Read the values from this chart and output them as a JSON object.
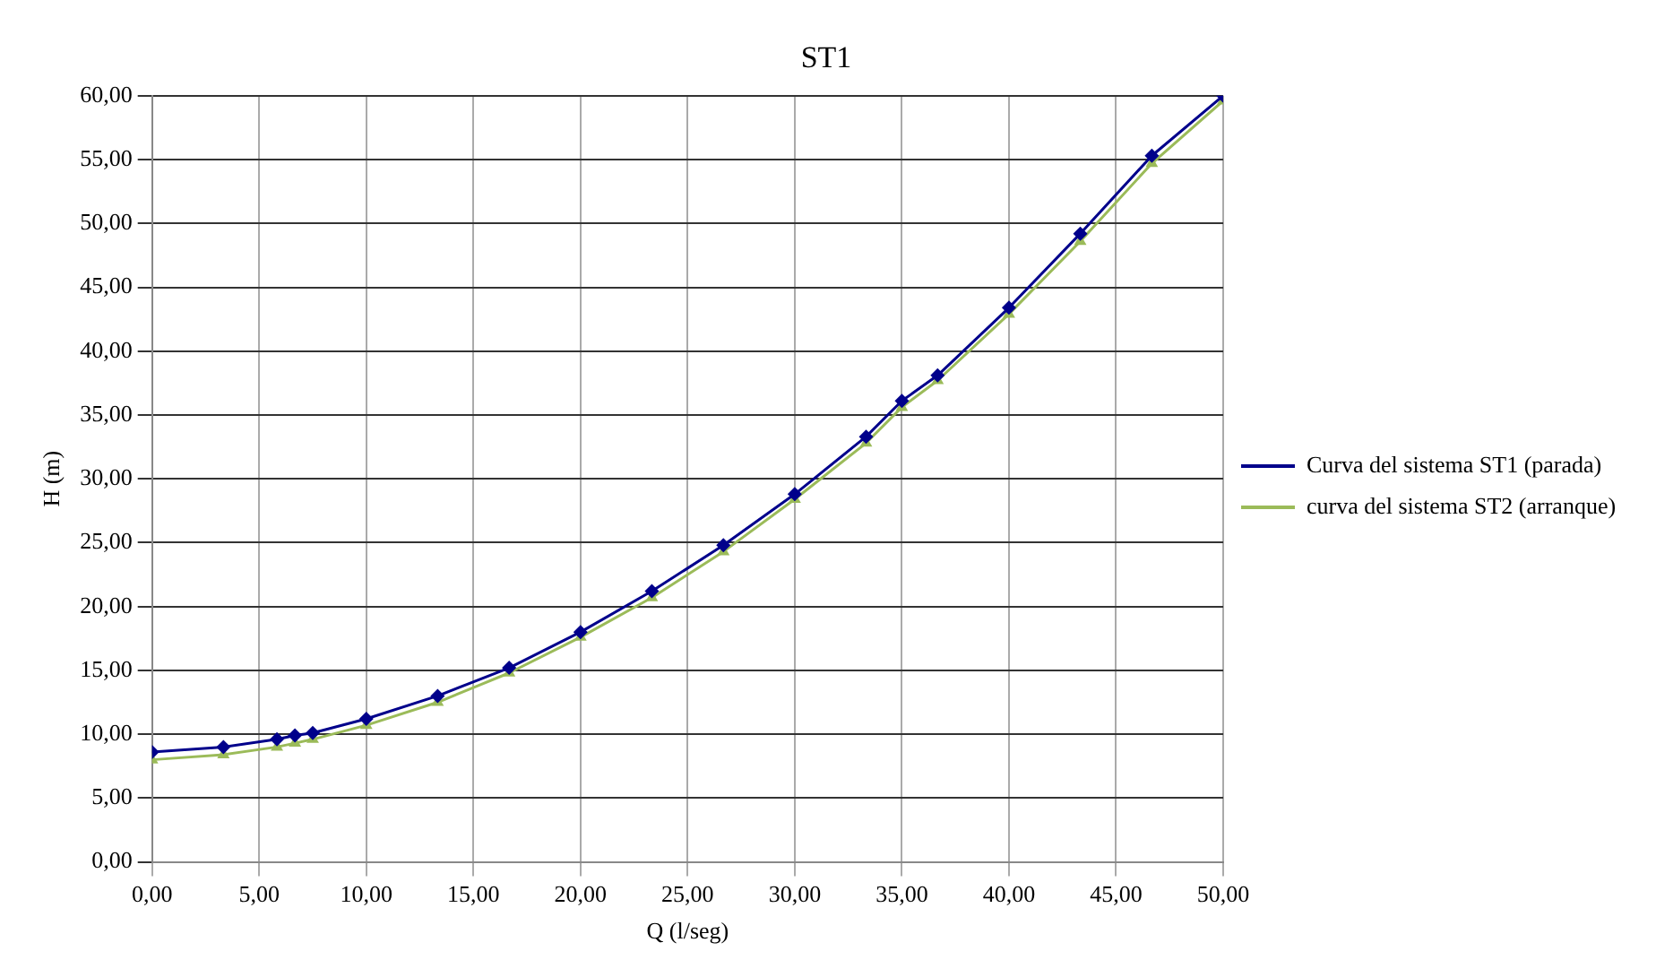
{
  "chart_data": {
    "type": "line",
    "title": "ST1",
    "xlabel": "Q (l/seg)",
    "ylabel": "H (m)",
    "x": [
      0,
      3.33,
      5.83,
      6.67,
      7.5,
      10,
      13.33,
      16.67,
      20,
      23.33,
      26.67,
      30,
      33.33,
      35,
      36.67,
      40,
      43.33,
      46.67,
      50
    ],
    "series": [
      {
        "name": "Curva del sistema ST1 (parada)",
        "color": "#00008b",
        "marker": "diamond",
        "values": [
          8.6,
          9.0,
          9.6,
          9.9,
          10.1,
          11.2,
          13.0,
          15.2,
          18.0,
          21.2,
          24.8,
          28.8,
          33.3,
          36.1,
          38.1,
          43.4,
          49.2,
          55.3,
          60.0
        ]
      },
      {
        "name": "curva del sistema ST2 (arranque)",
        "color": "#9bbb59",
        "marker": "triangle",
        "values": [
          8.0,
          8.4,
          9.0,
          9.3,
          9.6,
          10.7,
          12.5,
          14.8,
          17.6,
          20.7,
          24.3,
          28.4,
          32.8,
          35.6,
          37.7,
          42.9,
          48.6,
          54.7,
          59.6
        ]
      }
    ],
    "xlim": [
      0,
      50
    ],
    "xticks": [
      {
        "value": 0,
        "label": "0,00"
      },
      {
        "value": 5,
        "label": "5,00"
      },
      {
        "value": 10,
        "label": "10,00"
      },
      {
        "value": 15,
        "label": "15,00"
      },
      {
        "value": 20,
        "label": "20,00"
      },
      {
        "value": 25,
        "label": "25,00"
      },
      {
        "value": 30,
        "label": "30,00"
      },
      {
        "value": 35,
        "label": "35,00"
      },
      {
        "value": 40,
        "label": "40,00"
      },
      {
        "value": 45,
        "label": "45,00"
      },
      {
        "value": 50,
        "label": "50,00"
      }
    ],
    "ylim": [
      0,
      60
    ],
    "yticks": [
      {
        "value": 0,
        "label": "0,00"
      },
      {
        "value": 5,
        "label": "5,00"
      },
      {
        "value": 10,
        "label": "10,00"
      },
      {
        "value": 15,
        "label": "15,00"
      },
      {
        "value": 20,
        "label": "20,00"
      },
      {
        "value": 25,
        "label": "25,00"
      },
      {
        "value": 30,
        "label": "30,00"
      },
      {
        "value": 35,
        "label": "35,00"
      },
      {
        "value": 40,
        "label": "40,00"
      },
      {
        "value": 45,
        "label": "45,00"
      },
      {
        "value": 50,
        "label": "50,00"
      },
      {
        "value": 55,
        "label": "55,00"
      },
      {
        "value": 60,
        "label": "60,00"
      }
    ],
    "grid": true,
    "legend": "right",
    "line_style": "solid"
  }
}
